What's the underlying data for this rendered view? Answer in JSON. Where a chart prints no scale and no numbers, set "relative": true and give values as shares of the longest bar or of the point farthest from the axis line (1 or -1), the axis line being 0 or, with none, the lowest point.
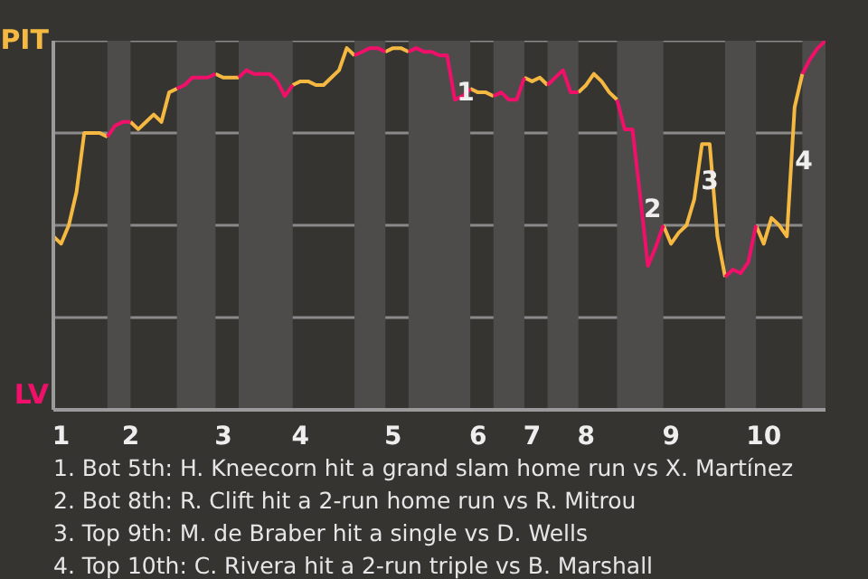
{
  "chart_data": {
    "type": "line",
    "relative": true,
    "marker": "none",
    "line_style": "solid",
    "categories": [
      null,
      "1",
      null,
      null,
      null,
      null,
      null,
      null,
      null,
      null,
      "2",
      null,
      null,
      null,
      null,
      null,
      null,
      null,
      null,
      null,
      null,
      null,
      "3",
      null,
      null,
      null,
      null,
      null,
      null,
      null,
      null,
      null,
      "4",
      null,
      null,
      null,
      null,
      null,
      null,
      null,
      null,
      null,
      null,
      null,
      "5",
      null,
      null,
      null,
      null,
      null,
      null,
      null,
      null,
      null,
      null,
      "6",
      null,
      null,
      null,
      null,
      null,
      null,
      "7",
      null,
      null,
      null,
      null,
      null,
      null,
      "8",
      null,
      null,
      null,
      null,
      null,
      null,
      null,
      null,
      null,
      null,
      "9",
      null,
      null,
      null,
      null,
      null,
      null,
      null,
      null,
      null,
      null,
      null,
      "10",
      null,
      null,
      null,
      null,
      null,
      null,
      null,
      null
    ],
    "series": [
      {
        "color": "#f5b942",
        "values": [
          0.47,
          0.45,
          0.5,
          0.59,
          0.75,
          0.75,
          0.75,
          0.74,
          null,
          null,
          0.78,
          0.76,
          0.78,
          0.8,
          0.78,
          0.86,
          0.87,
          null,
          null,
          null,
          null,
          0.91,
          0.9,
          0.9,
          0.9,
          null,
          null,
          null,
          null,
          null,
          null,
          0.88,
          0.89,
          0.89,
          0.88,
          0.88,
          0.9,
          0.92,
          0.98,
          0.96,
          null,
          null,
          null,
          0.97,
          0.98,
          0.98,
          0.97,
          null,
          null,
          null,
          null,
          null,
          null,
          null,
          0.87,
          0.86,
          0.86,
          0.85,
          null,
          null,
          null,
          0.9,
          0.89,
          0.9,
          0.88,
          null,
          null,
          null,
          0.86,
          0.88,
          0.91,
          0.89,
          0.86,
          0.84,
          null,
          null,
          null,
          null,
          null,
          0.5,
          0.45,
          0.48,
          0.5,
          0.57,
          0.72,
          0.72,
          0.47,
          0.36,
          null,
          null,
          null,
          0.5,
          0.45,
          0.52,
          0.5,
          0.47,
          0.82,
          0.91,
          null,
          null,
          null
        ]
      },
      {
        "color": "#f0106a",
        "values": [
          null,
          null,
          null,
          null,
          null,
          null,
          null,
          0.74,
          0.77,
          0.78,
          0.78,
          null,
          null,
          null,
          null,
          null,
          0.87,
          0.88,
          0.9,
          0.9,
          0.9,
          0.91,
          null,
          null,
          0.9,
          0.92,
          0.91,
          0.91,
          0.91,
          0.89,
          0.85,
          0.88,
          null,
          null,
          null,
          null,
          null,
          null,
          null,
          0.96,
          0.97,
          0.98,
          0.98,
          0.97,
          null,
          null,
          0.97,
          0.98,
          0.97,
          0.97,
          0.96,
          0.96,
          0.84,
          0.85,
          0.87,
          null,
          null,
          0.85,
          0.86,
          0.84,
          0.84,
          0.9,
          null,
          null,
          0.88,
          0.9,
          0.92,
          0.86,
          0.86,
          null,
          null,
          null,
          null,
          0.84,
          0.76,
          0.76,
          0.58,
          0.39,
          0.44,
          0.5,
          null,
          null,
          null,
          null,
          null,
          null,
          null,
          0.36,
          0.38,
          0.37,
          0.4,
          0.5,
          null,
          null,
          null,
          null,
          null,
          0.91,
          0.95,
          0.98,
          1.0
        ]
      }
    ],
    "annotations": [
      "PIT",
      "LV",
      "1",
      "2",
      "3",
      "4",
      "1. Bot 5th: H. Kneecorn hit a grand slam home run vs X. Martínez",
      "2. Bot 8th: R. Clift hit a 2-run home run vs R. Mitrou",
      "3. Top 9th: M. de Braber hit a single vs D. Wells",
      "4. Top 10th: C. Rivera hit a 2-run triple vs B. Marshall"
    ]
  }
}
